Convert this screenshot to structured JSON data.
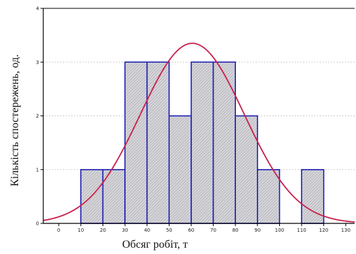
{
  "chart_data": {
    "type": "bar",
    "title": "",
    "xlabel": "Обсяг робіт, т",
    "ylabel": "Кількість спостережень, од.",
    "x_ticks": [
      0,
      10,
      20,
      30,
      40,
      50,
      60,
      70,
      80,
      90,
      100,
      110,
      120,
      130
    ],
    "y_ticks": [
      0,
      1,
      2,
      3,
      4
    ],
    "xlim": [
      -7,
      134
    ],
    "ylim": [
      0,
      4
    ],
    "bin_width": 10,
    "bins": [
      {
        "start": 10,
        "end": 20,
        "count": 1
      },
      {
        "start": 20,
        "end": 30,
        "count": 1
      },
      {
        "start": 30,
        "end": 40,
        "count": 3
      },
      {
        "start": 40,
        "end": 50,
        "count": 3
      },
      {
        "start": 50,
        "end": 60,
        "count": 2
      },
      {
        "start": 60,
        "end": 70,
        "count": 3
      },
      {
        "start": 70,
        "end": 80,
        "count": 3
      },
      {
        "start": 80,
        "end": 90,
        "count": 2
      },
      {
        "start": 90,
        "end": 100,
        "count": 1
      },
      {
        "start": 110,
        "end": 120,
        "count": 1
      }
    ],
    "normal_curve": {
      "mean": 60.5,
      "sd": 23.5,
      "peak": 3.35
    },
    "grid": true,
    "legend": "none",
    "colors": {
      "bar_fill": "#c8c8cc",
      "bar_edge": "#1f1fb4",
      "curve": "#c8204a",
      "grid": "#cfcfcf",
      "axis": "#000000"
    }
  }
}
